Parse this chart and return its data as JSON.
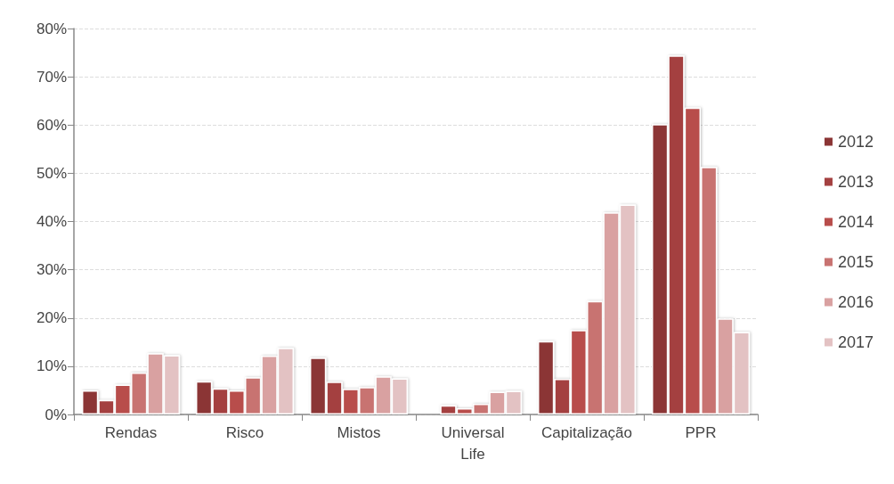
{
  "chart_data": {
    "type": "bar",
    "categories": [
      "Rendas",
      "Risco",
      "Mistos",
      "Universal\nLife",
      "Capitalização",
      "PPR"
    ],
    "series": [
      {
        "name": "2012",
        "color": "#8b3535",
        "values": [
          5.0,
          6.9,
          11.8,
          null,
          15.2,
          60.2
        ]
      },
      {
        "name": "2013",
        "color": "#a44141",
        "values": [
          3.0,
          5.4,
          6.8,
          1.9,
          7.4,
          74.4
        ]
      },
      {
        "name": "2014",
        "color": "#b84d4b",
        "values": [
          6.2,
          5.0,
          5.3,
          1.3,
          17.5,
          63.6
        ]
      },
      {
        "name": "2015",
        "color": "#c87371",
        "values": [
          8.7,
          7.7,
          5.7,
          2.2,
          23.5,
          51.3
        ]
      },
      {
        "name": "2016",
        "color": "#d9a1a1",
        "values": [
          12.7,
          12.2,
          7.9,
          4.7,
          41.9,
          19.9
        ]
      },
      {
        "name": "2017",
        "color": "#e3c2c3",
        "values": [
          12.3,
          13.8,
          7.5,
          4.9,
          43.5,
          17.1
        ]
      }
    ],
    "ylim": [
      0,
      80
    ],
    "yticks": [
      {
        "value": 0,
        "label": "0%"
      },
      {
        "value": 10,
        "label": "10%"
      },
      {
        "value": 20,
        "label": "20%"
      },
      {
        "value": 30,
        "label": "30%"
      },
      {
        "value": 40,
        "label": "40%"
      },
      {
        "value": 50,
        "label": "50%"
      },
      {
        "value": 60,
        "label": "60%"
      },
      {
        "value": 70,
        "label": "70%"
      },
      {
        "value": 80,
        "label": "80%"
      }
    ],
    "grid": "y",
    "legend": "right"
  }
}
